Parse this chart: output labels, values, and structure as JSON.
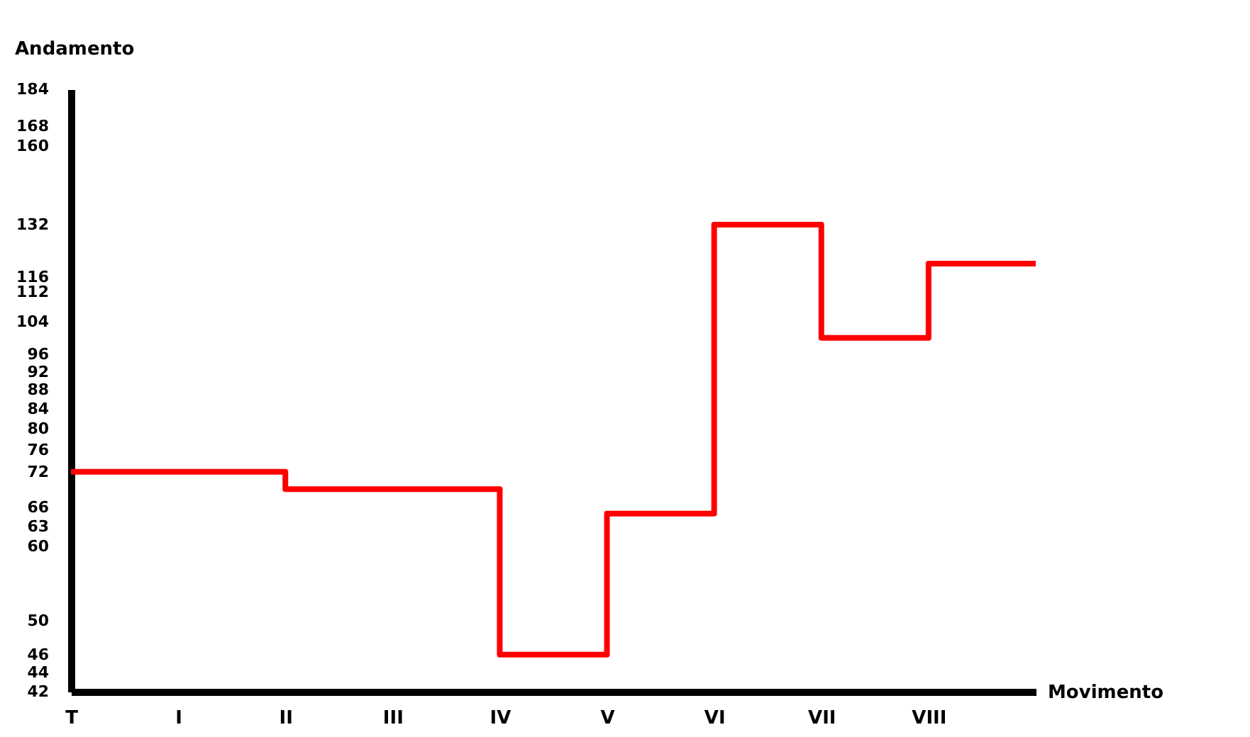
{
  "chart_data": {
    "type": "step",
    "xlabel": "Movimento",
    "ylabel": "Andamento",
    "categories": [
      "T",
      "I",
      "II",
      "III",
      "IV",
      "V",
      "VI",
      "VII",
      "VIII",
      null
    ],
    "values": [
      72,
      72,
      69,
      69,
      46,
      65,
      132,
      100,
      120,
      120
    ],
    "color": "#ff0000",
    "log": true,
    "ylim": [
      42,
      184
    ],
    "yticks": [
      42,
      44,
      46,
      50,
      60,
      63,
      66,
      72,
      76,
      80,
      84,
      88,
      92,
      96,
      104,
      112,
      116,
      132,
      160,
      168,
      184
    ],
    "grid": false
  }
}
